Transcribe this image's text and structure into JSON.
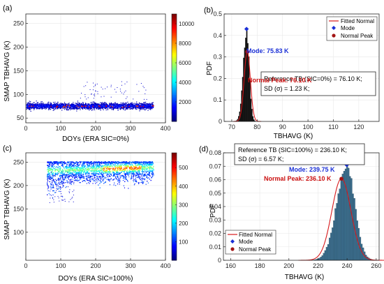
{
  "colors": {
    "axis": "#262626",
    "grid": "#e8e8e8",
    "hist_bar": "#3b6f8f",
    "hist_black": "#111111",
    "fit_line": "#d7191c",
    "mode_marker": "#1a2fd6",
    "peak_marker": "#a31515",
    "mode_text": "#1a2fd6",
    "peak_text": "#cc1111"
  },
  "chart_data": [
    {
      "id": "a",
      "panel_label": "(a)",
      "type": "scatter",
      "xlabel": "DOYs (ERA SIC=0%)",
      "ylabel": "SMAP TBHAVG (K)",
      "xlim": [
        0,
        400
      ],
      "ylim": [
        40,
        270
      ],
      "xticks": [
        0,
        100,
        200,
        300,
        400
      ],
      "yticks": [
        50,
        100,
        150,
        200,
        250
      ],
      "band": {
        "x": [
          1,
          365
        ],
        "y_low": 65,
        "y_high": 88,
        "center": 76
      },
      "colorbar": {
        "min": 0,
        "max": 11000,
        "ticks": [
          2000,
          4000,
          6000,
          8000,
          10000
        ],
        "colormap": "jet"
      },
      "grid": true
    },
    {
      "id": "b",
      "panel_label": "(b)",
      "type": "bar",
      "xlabel": "TBHAVG (K)",
      "ylabel": "PDF",
      "xlim": [
        67,
        128
      ],
      "ylim": [
        0,
        0.5
      ],
      "xticks": [
        70,
        80,
        90,
        100,
        110,
        120
      ],
      "yticks": [
        0,
        0.1,
        0.2,
        0.3,
        0.4,
        0.5
      ],
      "mean": 76.1,
      "sd": 1.23,
      "mode_x": 75.83,
      "mode_y": 0.43,
      "peak_x": 76.1,
      "peak_y": 0.324,
      "legend": [
        "Fitted Normal",
        "Mode",
        "Normal Peak"
      ],
      "legend_position": "top-right",
      "mode_label": "Mode: 75.83 K",
      "peak_label": "Normal Peak: 76.10 K",
      "info_line1": "Reference TB (SIC=0%) = 76.10 K;",
      "info_line2": "SD (σ) = 1.23 K;",
      "grid": true
    },
    {
      "id": "c",
      "panel_label": "(c)",
      "type": "scatter",
      "xlabel": "DOYs (ERA SIC=100%)",
      "ylabel": "SMAP TBHAVG (K)",
      "xlim": [
        0,
        400
      ],
      "ylim": [
        40,
        270
      ],
      "xticks": [
        0,
        100,
        200,
        300,
        400
      ],
      "yticks": [
        100,
        150,
        200,
        250
      ],
      "cloud": {
        "x": [
          60,
          365
        ],
        "y_center": 236,
        "y_spread": 14
      },
      "colorbar": {
        "min": 0,
        "max": 580,
        "ticks": [
          100,
          200,
          300,
          400,
          500
        ],
        "colormap": "jet"
      },
      "grid": true
    },
    {
      "id": "d",
      "panel_label": "(d)",
      "type": "bar",
      "xlabel": "TBHAVG (K)",
      "ylabel": "PDF",
      "xlim": [
        155,
        262
      ],
      "ylim": [
        0,
        0.08
      ],
      "xticks": [
        160,
        180,
        200,
        220,
        240,
        260
      ],
      "yticks": [
        0,
        0.01,
        0.02,
        0.03,
        0.04,
        0.05,
        0.06,
        0.07,
        0.08
      ],
      "mean": 236.1,
      "sd": 6.57,
      "mode_x": 239.75,
      "mode_y": 0.071,
      "peak_x": 236.1,
      "peak_y": 0.0607,
      "legend": [
        "Fitted Normal",
        "Mode",
        "Normal Peak"
      ],
      "legend_position": "bottom-left",
      "mode_label": "Mode: 239.75 K",
      "peak_label": "Normal Peak: 236.10 K",
      "info_line1": "Reference TB (SIC=100%) = 236.10 K;",
      "info_line2": "SD (σ) = 6.57 K;",
      "grid": true
    }
  ]
}
